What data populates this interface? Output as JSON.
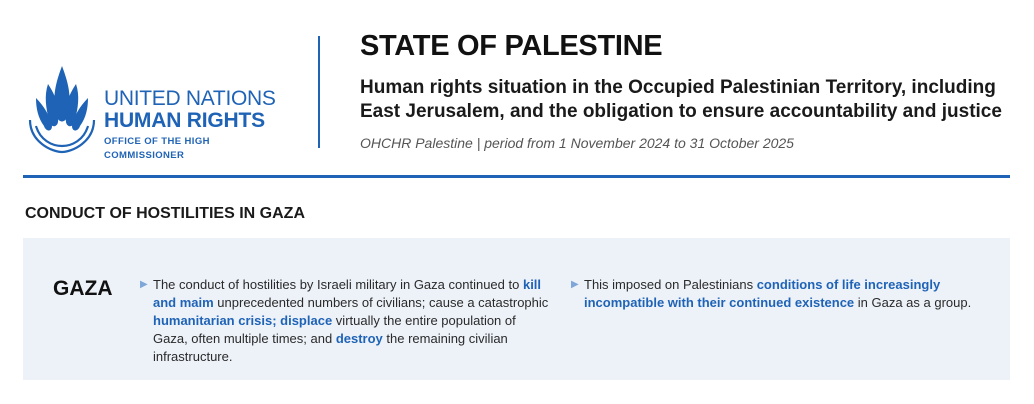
{
  "logo": {
    "line1": "UNITED NATIONS",
    "line2": "HUMAN RIGHTS",
    "line3": "OFFICE OF THE HIGH COMMISSIONER",
    "brand_color": "#1f63b6"
  },
  "header": {
    "title": "STATE OF PALESTINE",
    "subtitle": "Human rights situation in the Occupied Palestinian Territory, including East Jerusalem, and the obligation to ensure accountability and justice",
    "meta": "OHCHR Palestine | period from 1 November 2024 to 31 October 2025"
  },
  "section": {
    "heading": "CONDUCT OF HOSTILITIES IN GAZA",
    "region": "GAZA",
    "bullet1": {
      "t1": "The conduct of hostilities by Israeli military in Gaza continued to ",
      "h1": "kill and maim",
      "t2": " unprecedented numbers of civilians; cause a catastrophic ",
      "h2": "humanitarian crisis; displace",
      "t3": " virtually the entire population of Gaza, often multiple times; and ",
      "h3": "destroy",
      "t4": " the remaining civilian infrastructure."
    },
    "bullet2": {
      "t1": "This imposed on Palestinians ",
      "h1": "conditions of life increasingly incompatible with their continued existence",
      "t2": " in Gaza as a group."
    },
    "bullet_arrow_icon": "triangle-right-icon",
    "panel_color": "#edf2f9"
  }
}
